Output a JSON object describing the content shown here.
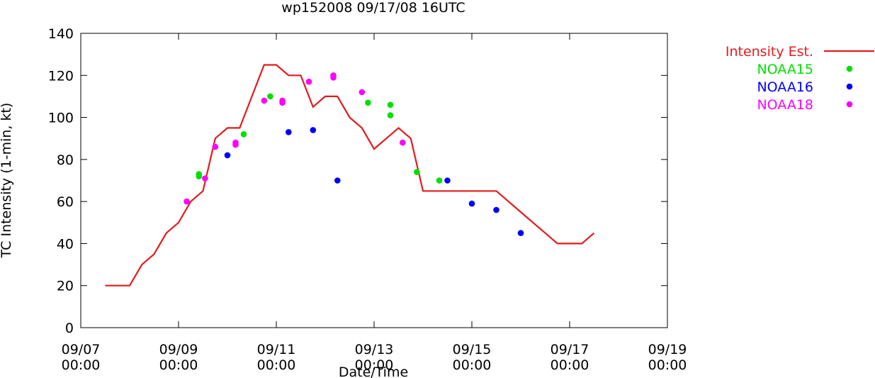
{
  "chart_data": {
    "type": "line",
    "title": "wp152008 09/17/08 16UTC",
    "xlabel": "Date/Time",
    "ylabel": "TC Intensity (1-min, kt)",
    "xlim": [
      "09/07 00:00",
      "09/19 00:00"
    ],
    "ylim": [
      0,
      140
    ],
    "grid": false,
    "legend_position": "top-right, outside plot",
    "x_ticks": [
      {
        "date": "09/07",
        "time": "00:00"
      },
      {
        "date": "09/09",
        "time": "00:00"
      },
      {
        "date": "09/11",
        "time": "00:00"
      },
      {
        "date": "09/13",
        "time": "00:00"
      },
      {
        "date": "09/15",
        "time": "00:00"
      },
      {
        "date": "09/17",
        "time": "00:00"
      },
      {
        "date": "09/19",
        "time": "00:00"
      }
    ],
    "y_ticks": [
      "0",
      "20",
      "40",
      "60",
      "80",
      "100",
      "120",
      "140"
    ],
    "series": [
      {
        "name": "Intensity Est.",
        "kind": "line",
        "color": "#e41a1c",
        "points": [
          [
            "09/07 12:00",
            20
          ],
          [
            "09/08 00:00",
            20
          ],
          [
            "09/08 06:00",
            30
          ],
          [
            "09/08 12:00",
            35
          ],
          [
            "09/08 18:00",
            45
          ],
          [
            "09/09 00:00",
            50
          ],
          [
            "09/09 06:00",
            60
          ],
          [
            "09/09 12:00",
            65
          ],
          [
            "09/09 18:00",
            90
          ],
          [
            "09/10 00:00",
            95
          ],
          [
            "09/10 06:00",
            95
          ],
          [
            "09/10 12:00",
            110
          ],
          [
            "09/10 18:00",
            125
          ],
          [
            "09/11 00:00",
            125
          ],
          [
            "09/11 06:00",
            120
          ],
          [
            "09/11 12:00",
            120
          ],
          [
            "09/11 18:00",
            105
          ],
          [
            "09/12 00:00",
            110
          ],
          [
            "09/12 06:00",
            110
          ],
          [
            "09/12 12:00",
            100
          ],
          [
            "09/12 18:00",
            95
          ],
          [
            "09/13 00:00",
            85
          ],
          [
            "09/13 06:00",
            90
          ],
          [
            "09/13 12:00",
            95
          ],
          [
            "09/13 18:00",
            90
          ],
          [
            "09/14 00:00",
            65
          ],
          [
            "09/14 06:00",
            65
          ],
          [
            "09/14 12:00",
            65
          ],
          [
            "09/14 18:00",
            65
          ],
          [
            "09/15 00:00",
            65
          ],
          [
            "09/15 12:00",
            65
          ],
          [
            "09/16 00:00",
            55
          ],
          [
            "09/16 12:00",
            45
          ],
          [
            "09/16 18:00",
            40
          ],
          [
            "09/17 00:00",
            40
          ],
          [
            "09/17 06:00",
            40
          ],
          [
            "09/17 12:00",
            45
          ]
        ]
      },
      {
        "name": "NOAA15",
        "kind": "scatter",
        "color": "#00e000",
        "points": [
          [
            "09/09 10:00",
            73
          ],
          [
            "09/09 10:00",
            72
          ],
          [
            "09/10 08:00",
            92
          ],
          [
            "09/10 21:00",
            110
          ],
          [
            "09/12 21:00",
            107
          ],
          [
            "09/13 08:00",
            106
          ],
          [
            "09/13 08:00",
            101
          ],
          [
            "09/13 21:00",
            74
          ],
          [
            "09/14 08:00",
            70
          ]
        ]
      },
      {
        "name": "NOAA16",
        "kind": "scatter",
        "color": "#0000ff",
        "points": [
          [
            "09/10 00:00",
            82
          ],
          [
            "09/11 06:00",
            93
          ],
          [
            "09/11 18:00",
            94
          ],
          [
            "09/12 06:00",
            70
          ],
          [
            "09/14 12:00",
            70
          ],
          [
            "09/15 00:00",
            59
          ],
          [
            "09/15 12:00",
            56
          ],
          [
            "09/16 00:00",
            45
          ]
        ]
      },
      {
        "name": "NOAA18",
        "kind": "scatter",
        "color": "#ff00ff",
        "points": [
          [
            "09/09 04:00",
            60
          ],
          [
            "09/09 13:00",
            71
          ],
          [
            "09/09 18:00",
            86
          ],
          [
            "09/10 04:00",
            88
          ],
          [
            "09/10 04:00",
            87
          ],
          [
            "09/10 18:00",
            108
          ],
          [
            "09/11 03:00",
            108
          ],
          [
            "09/11 03:00",
            107
          ],
          [
            "09/11 16:00",
            117
          ],
          [
            "09/12 04:00",
            120
          ],
          [
            "09/12 04:00",
            119
          ],
          [
            "09/12 18:00",
            112
          ],
          [
            "09/13 14:00",
            88
          ]
        ]
      }
    ]
  }
}
